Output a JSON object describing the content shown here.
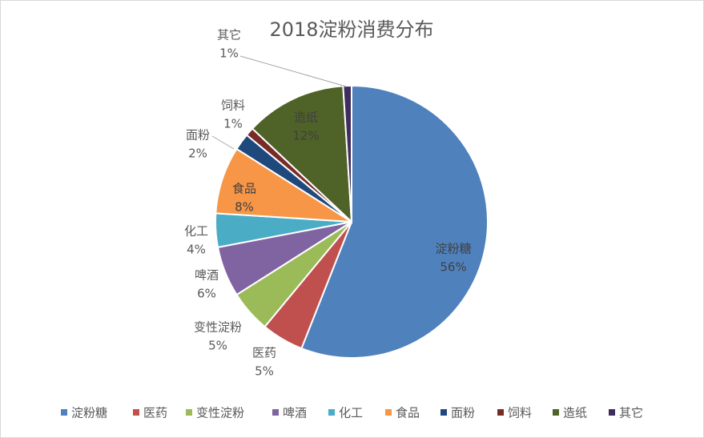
{
  "chart_data": {
    "type": "pie",
    "title": "2018淀粉消费分布",
    "categories": [
      "淀粉糖",
      "医药",
      "变性淀粉",
      "啤酒",
      "化工",
      "食品",
      "面粉",
      "饲料",
      "造纸",
      "其它"
    ],
    "values": [
      56,
      5,
      5,
      6,
      4,
      8,
      2,
      1,
      12,
      1
    ],
    "value_labels": [
      "56%",
      "5%",
      "5%",
      "6%",
      "4%",
      "8%",
      "2%",
      "1%",
      "12%",
      "1%"
    ],
    "colors": [
      "#4f81bd",
      "#c0504d",
      "#9bbb59",
      "#8064a2",
      "#4bacc6",
      "#f79646",
      "#1f497d",
      "#772c2a",
      "#4f6228",
      "#3f2d5e"
    ],
    "legend": "bottom"
  }
}
